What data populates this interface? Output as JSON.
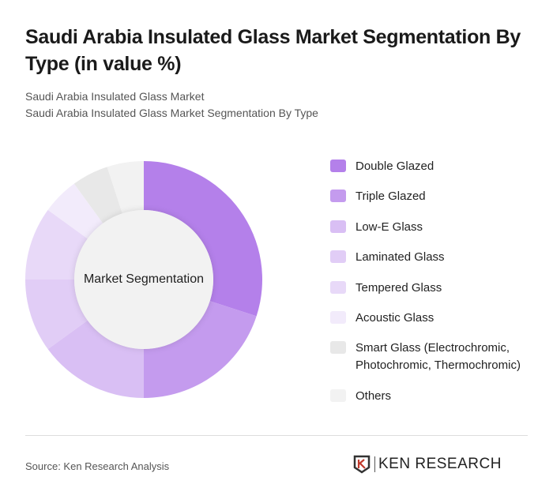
{
  "header": {
    "title": "Saudi Arabia Insulated Glass Market Segmentation By Type (in value %)",
    "subtitle_line1": "Saudi Arabia Insulated Glass Market",
    "subtitle_line2": "Saudi Arabia Insulated Glass Market Segmentation By Type"
  },
  "chart": {
    "center_label": "Market Segmentation"
  },
  "legend": {
    "items": [
      {
        "label": "Double Glazed",
        "color": "#b480ea"
      },
      {
        "label": "Triple Glazed",
        "color": "#c49bee"
      },
      {
        "label": "Low-E Glass",
        "color": "#d9bff4"
      },
      {
        "label": "Laminated Glass",
        "color": "#e1cdf6"
      },
      {
        "label": "Tempered Glass",
        "color": "#e8d9f8"
      },
      {
        "label": "Acoustic Glass",
        "color": "#f2ebfb"
      },
      {
        "label": "Smart Glass (Electrochromic, Photochromic, Thermochromic)",
        "color": "#e8e8e8"
      },
      {
        "label": "Others",
        "color": "#f2f2f2"
      }
    ]
  },
  "footer": {
    "source": "Source: Ken Research Analysis",
    "logo_text": "KEN RESEARCH"
  },
  "chart_data": {
    "type": "pie",
    "title": "Saudi Arabia Insulated Glass Market Segmentation By Type (in value %)",
    "center_label": "Market Segmentation",
    "categories": [
      "Double Glazed",
      "Triple Glazed",
      "Low-E Glass",
      "Laminated Glass",
      "Tempered Glass",
      "Acoustic Glass",
      "Smart Glass (Electrochromic, Photochromic, Thermochromic)",
      "Others"
    ],
    "values": [
      30,
      20,
      15,
      10,
      10,
      5,
      5,
      5
    ],
    "colors": [
      "#b480ea",
      "#c49bee",
      "#d9bff4",
      "#e1cdf6",
      "#e8d9f8",
      "#f2ebfb",
      "#e8e8e8",
      "#f2f2f2"
    ],
    "legend_position": "right",
    "donut": true
  }
}
